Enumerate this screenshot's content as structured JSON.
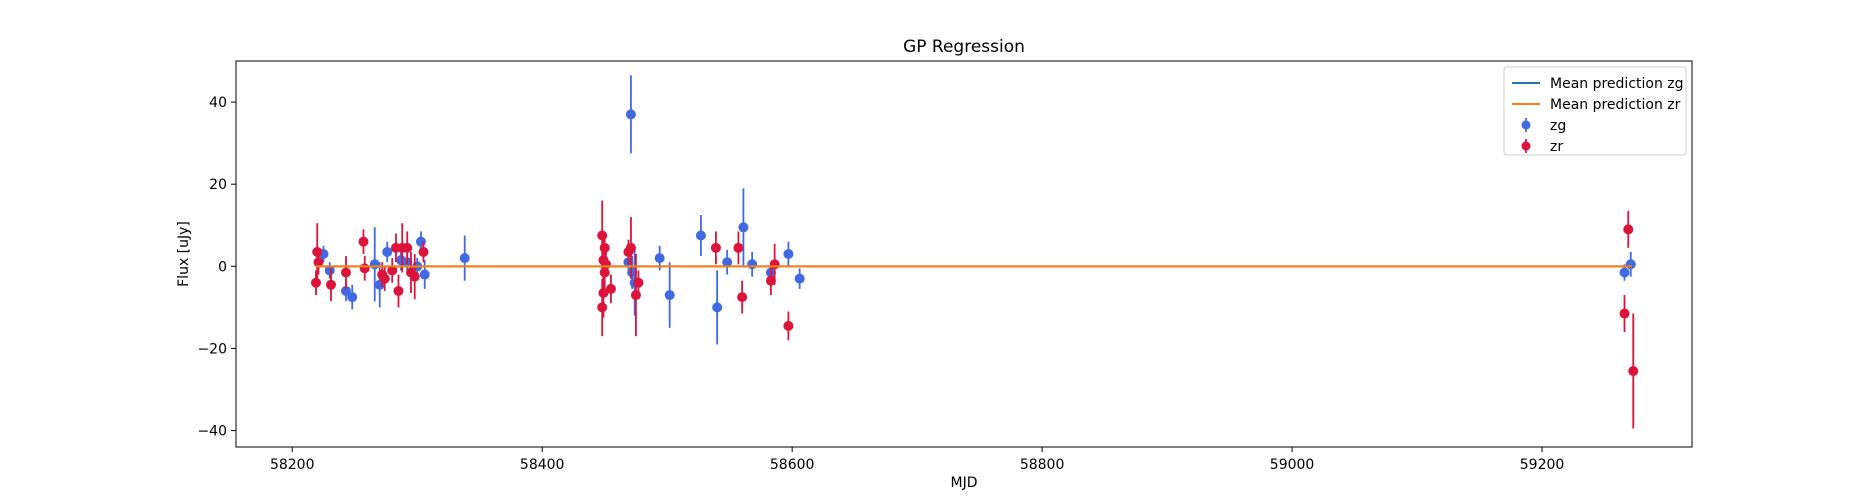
{
  "chart_data": {
    "type": "scatter",
    "title": "GP Regression",
    "xlabel": "MJD",
    "ylabel": "Flux [uJy]",
    "xlim": [
      58155,
      59320
    ],
    "ylim": [
      -44,
      50
    ],
    "xticks": [
      58200,
      58400,
      58600,
      58800,
      59000,
      59200
    ],
    "yticks": [
      -40,
      -20,
      0,
      20,
      40
    ],
    "grid": false,
    "legend_position": "top-right",
    "lines": [
      {
        "name": "Mean prediction zg",
        "color": "#1f77b4",
        "x": [
          58219,
          59272
        ],
        "y": [
          0,
          0
        ]
      },
      {
        "name": "Mean prediction zr",
        "color": "#ff7f0e",
        "x": [
          58219,
          59272
        ],
        "y": [
          0,
          0
        ]
      }
    ],
    "series": [
      {
        "name": "zg",
        "color": "#4169e1",
        "points": [
          {
            "x": 58225,
            "y": 3.0,
            "err": 2.0
          },
          {
            "x": 58230,
            "y": -1.0,
            "err": 2.0
          },
          {
            "x": 58243,
            "y": -6.0,
            "err": 2.5
          },
          {
            "x": 58248,
            "y": -7.5,
            "err": 3.0
          },
          {
            "x": 58266,
            "y": 0.5,
            "err": 9.0
          },
          {
            "x": 58270,
            "y": -4.5,
            "err": 5.5
          },
          {
            "x": 58276,
            "y": 3.5,
            "err": 2.5
          },
          {
            "x": 58287,
            "y": 1.5,
            "err": 2.5
          },
          {
            "x": 58292,
            "y": 1.0,
            "err": 2.0
          },
          {
            "x": 58300,
            "y": 0.0,
            "err": 2.0
          },
          {
            "x": 58303,
            "y": 6.0,
            "err": 2.5
          },
          {
            "x": 58306,
            "y": -2.0,
            "err": 3.5
          },
          {
            "x": 58338,
            "y": 2.0,
            "err": 5.5
          },
          {
            "x": 58469,
            "y": 1.0,
            "err": 3.0
          },
          {
            "x": 58471,
            "y": 37.0,
            "err": 9.5
          },
          {
            "x": 58472,
            "y": -1.5,
            "err": 4.0
          },
          {
            "x": 58474,
            "y": -4.0,
            "err": 8.0
          },
          {
            "x": 58494,
            "y": 2.0,
            "err": 3.0
          },
          {
            "x": 58502,
            "y": -7.0,
            "err": 8.0
          },
          {
            "x": 58527,
            "y": 7.5,
            "err": 5.0
          },
          {
            "x": 58540,
            "y": -10.0,
            "err": 9.0
          },
          {
            "x": 58548,
            "y": 1.0,
            "err": 3.0
          },
          {
            "x": 58561,
            "y": 9.5,
            "err": 9.5
          },
          {
            "x": 58568,
            "y": 0.5,
            "err": 3.0
          },
          {
            "x": 58583,
            "y": -1.5,
            "err": 2.5
          },
          {
            "x": 58597,
            "y": 3.0,
            "err": 3.0
          },
          {
            "x": 58606,
            "y": -3.0,
            "err": 2.5
          },
          {
            "x": 59266,
            "y": -1.5,
            "err": 2.0
          },
          {
            "x": 59271,
            "y": 0.5,
            "err": 3.0
          }
        ]
      },
      {
        "name": "zr",
        "color": "#dc143c",
        "points": [
          {
            "x": 58219,
            "y": -4.0,
            "err": 3.0
          },
          {
            "x": 58220,
            "y": 3.5,
            "err": 7.0
          },
          {
            "x": 58221,
            "y": 1.0,
            "err": 3.0
          },
          {
            "x": 58231,
            "y": -4.5,
            "err": 4.0
          },
          {
            "x": 58243,
            "y": -1.5,
            "err": 4.0
          },
          {
            "x": 58257,
            "y": 6.0,
            "err": 3.0
          },
          {
            "x": 58258,
            "y": -0.5,
            "err": 3.0
          },
          {
            "x": 58272,
            "y": -2.0,
            "err": 3.0
          },
          {
            "x": 58274,
            "y": -3.0,
            "err": 3.0
          },
          {
            "x": 58280,
            "y": -1.0,
            "err": 3.0
          },
          {
            "x": 58283,
            "y": 4.5,
            "err": 3.5
          },
          {
            "x": 58285,
            "y": -6.0,
            "err": 4.0
          },
          {
            "x": 58288,
            "y": 4.5,
            "err": 6.0
          },
          {
            "x": 58292,
            "y": 4.5,
            "err": 4.0
          },
          {
            "x": 58295,
            "y": -1.5,
            "err": 5.0
          },
          {
            "x": 58298,
            "y": -2.5,
            "err": 5.5
          },
          {
            "x": 58305,
            "y": 3.5,
            "err": 2.5
          },
          {
            "x": 58448,
            "y": 7.5,
            "err": 8.5
          },
          {
            "x": 58448,
            "y": -10.0,
            "err": 7.0
          },
          {
            "x": 58449,
            "y": 1.5,
            "err": 5.5
          },
          {
            "x": 58449,
            "y": -6.5,
            "err": 6.0
          },
          {
            "x": 58450,
            "y": 4.5,
            "err": 3.5
          },
          {
            "x": 58450,
            "y": -1.5,
            "err": 4.0
          },
          {
            "x": 58451,
            "y": 0.5,
            "err": 3.0
          },
          {
            "x": 58455,
            "y": -5.5,
            "err": 3.5
          },
          {
            "x": 58469,
            "y": 3.5,
            "err": 3.0
          },
          {
            "x": 58471,
            "y": 4.5,
            "err": 7.5
          },
          {
            "x": 58475,
            "y": -7.0,
            "err": 10.0
          },
          {
            "x": 58477,
            "y": -4.0,
            "err": 3.0
          },
          {
            "x": 58539,
            "y": 4.5,
            "err": 4.0
          },
          {
            "x": 58557,
            "y": 4.5,
            "err": 4.0
          },
          {
            "x": 58560,
            "y": -7.5,
            "err": 4.0
          },
          {
            "x": 58583,
            "y": -3.5,
            "err": 3.5
          },
          {
            "x": 58586,
            "y": 0.5,
            "err": 5.0
          },
          {
            "x": 58597,
            "y": -14.5,
            "err": 3.5
          },
          {
            "x": 59266,
            "y": -11.5,
            "err": 4.5
          },
          {
            "x": 59269,
            "y": 9.0,
            "err": 4.5
          },
          {
            "x": 59273,
            "y": -25.5,
            "err": 14.0
          }
        ]
      }
    ]
  }
}
